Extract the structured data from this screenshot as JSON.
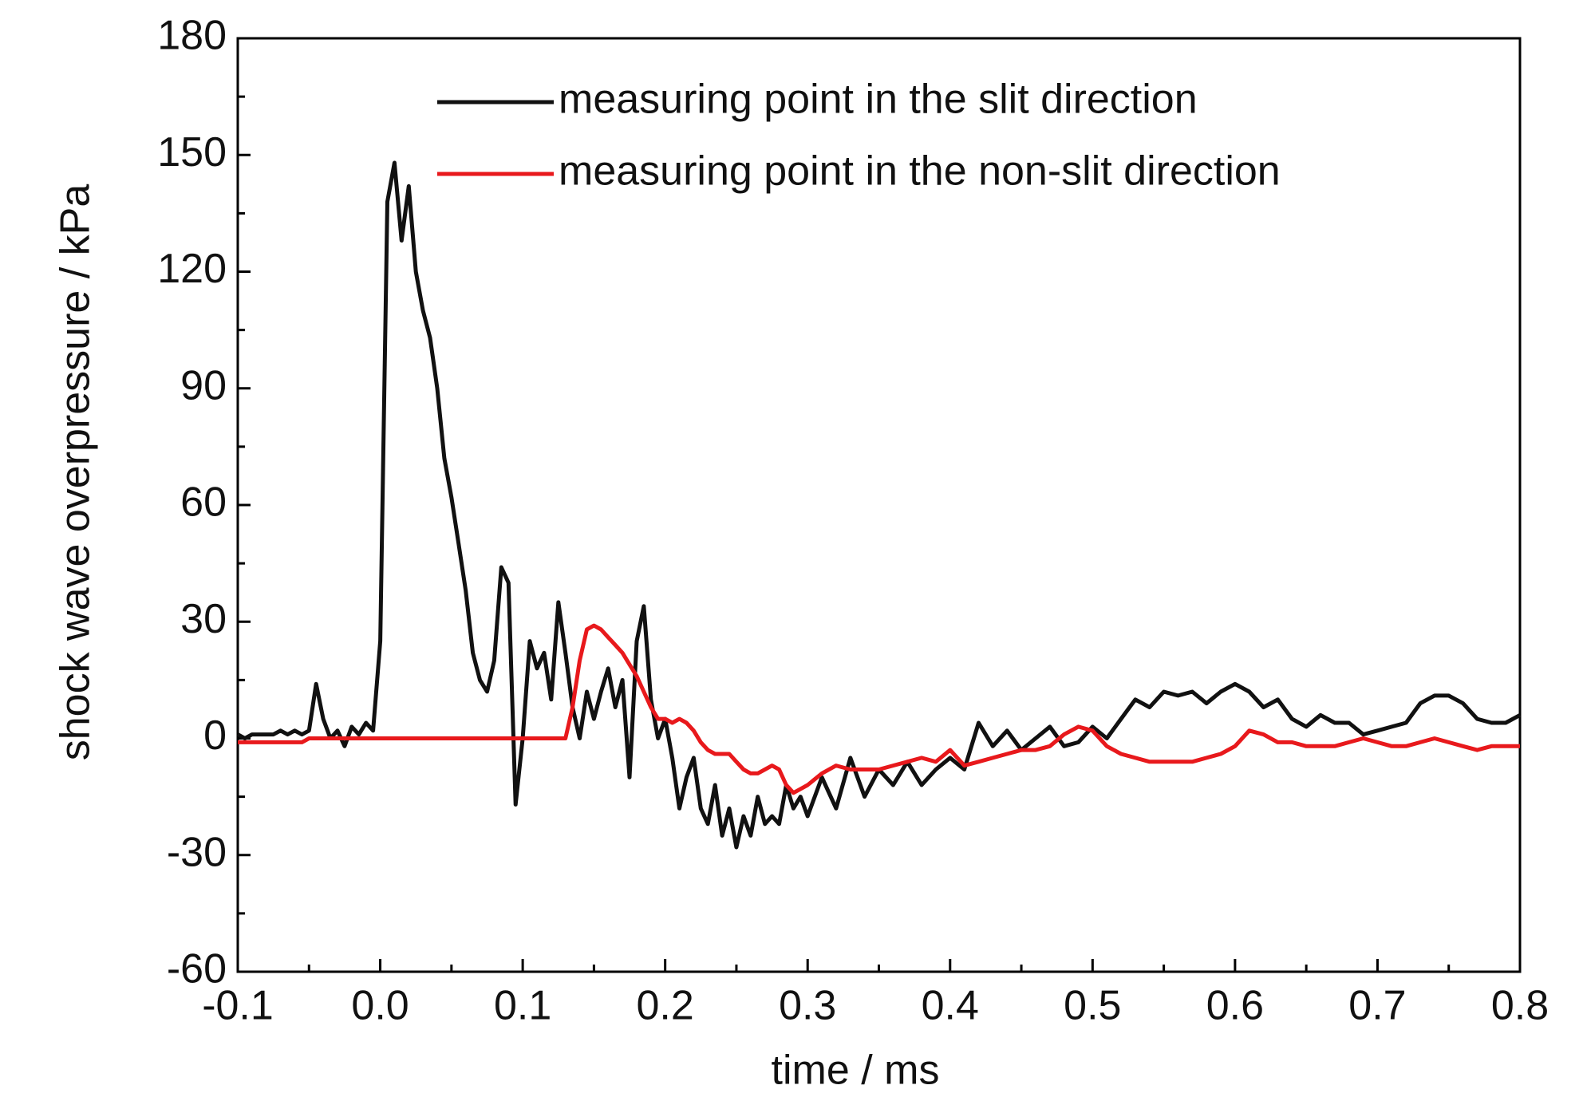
{
  "chart_data": {
    "type": "line",
    "x_label": "time / ms",
    "y_label": "shock wave overpressure / kPa",
    "xlim": [
      -0.1,
      0.8
    ],
    "ylim": [
      -60,
      180
    ],
    "xticks": [
      -0.1,
      {
        "value": 0,
        "label": "0.0"
      },
      0.1,
      0.2,
      0.3,
      0.4,
      0.5,
      0.6,
      0.7,
      0.8
    ],
    "yticks": [
      -60,
      -30,
      0,
      30,
      60,
      90,
      120,
      150,
      180
    ],
    "legend": "top",
    "x": [
      -0.1,
      -0.095,
      -0.09,
      -0.085,
      -0.08,
      -0.075,
      -0.07,
      -0.065,
      -0.06,
      -0.055,
      -0.05,
      -0.045,
      -0.04,
      -0.035,
      -0.03,
      -0.025,
      -0.02,
      -0.015,
      -0.01,
      -0.005,
      0,
      0.005,
      0.01,
      0.015,
      0.02,
      0.025,
      0.03,
      0.035,
      0.04,
      0.045,
      0.05,
      0.055,
      0.06,
      0.065,
      0.07,
      0.075,
      0.08,
      0.085,
      0.09,
      0.095,
      0.1,
      0.105,
      0.11,
      0.115,
      0.12,
      0.125,
      0.13,
      0.135,
      0.14,
      0.145,
      0.15,
      0.155,
      0.16,
      0.165,
      0.17,
      0.175,
      0.18,
      0.185,
      0.19,
      0.195,
      0.2,
      0.205,
      0.21,
      0.215,
      0.22,
      0.225,
      0.23,
      0.235,
      0.24,
      0.245,
      0.25,
      0.255,
      0.26,
      0.265,
      0.27,
      0.275,
      0.28,
      0.285,
      0.29,
      0.295,
      0.3,
      0.31,
      0.32,
      0.33,
      0.34,
      0.35,
      0.36,
      0.37,
      0.38,
      0.39,
      0.4,
      0.41,
      0.42,
      0.43,
      0.44,
      0.45,
      0.46,
      0.47,
      0.48,
      0.49,
      0.5,
      0.51,
      0.52,
      0.53,
      0.54,
      0.55,
      0.56,
      0.57,
      0.58,
      0.59,
      0.6,
      0.61,
      0.62,
      0.63,
      0.64,
      0.65,
      0.66,
      0.67,
      0.68,
      0.69,
      0.7,
      0.71,
      0.72,
      0.73,
      0.74,
      0.75,
      0.76,
      0.77,
      0.78,
      0.79,
      0.8
    ],
    "series": [
      {
        "name": "measuring point in the slit direction",
        "color": "#111111",
        "values": [
          1,
          0,
          1,
          1,
          1,
          1,
          2,
          1,
          2,
          1,
          2,
          14,
          5,
          0,
          2,
          -2,
          3,
          1,
          4,
          2,
          25,
          138,
          148,
          128,
          142,
          120,
          110,
          103,
          90,
          72,
          62,
          50,
          38,
          22,
          15,
          12,
          20,
          44,
          40,
          -17,
          0,
          25,
          18,
          22,
          10,
          35,
          22,
          8,
          0,
          12,
          5,
          12,
          18,
          8,
          15,
          -10,
          25,
          34,
          10,
          0,
          5,
          -5,
          -18,
          -10,
          -5,
          -18,
          -22,
          -12,
          -25,
          -18,
          -28,
          -20,
          -25,
          -15,
          -22,
          -20,
          -22,
          -12,
          -18,
          -15,
          -20,
          -10,
          -18,
          -5,
          -15,
          -8,
          -12,
          -6,
          -12,
          -8,
          -5,
          -8,
          4,
          -2,
          2,
          -3,
          0,
          3,
          -2,
          -1,
          3,
          0,
          5,
          10,
          8,
          12,
          11,
          12,
          9,
          12,
          14,
          12,
          8,
          10,
          5,
          3,
          6,
          4,
          4,
          1,
          2,
          3,
          4,
          9,
          11,
          11,
          9,
          5,
          4,
          4,
          6
        ]
      },
      {
        "name": "measuring point in the non-slit direction",
        "color": "#e8191c",
        "values": [
          -1,
          -1,
          -1,
          -1,
          -1,
          -1,
          -1,
          -1,
          -1,
          -1,
          0,
          0,
          0,
          0,
          0,
          0,
          0,
          0,
          0,
          0,
          0,
          0,
          0,
          0,
          0,
          0,
          0,
          0,
          0,
          0,
          0,
          0,
          0,
          0,
          0,
          0,
          0,
          0,
          0,
          0,
          0,
          0,
          0,
          0,
          0,
          0,
          0,
          8,
          20,
          28,
          29,
          28,
          26,
          24,
          22,
          19,
          16,
          12,
          8,
          5,
          5,
          4,
          5,
          4,
          2,
          -1,
          -3,
          -4,
          -4,
          -4,
          -6,
          -8,
          -9,
          -9,
          -8,
          -7,
          -8,
          -12,
          -14,
          -13,
          -12,
          -9,
          -7,
          -8,
          -8,
          -8,
          -7,
          -6,
          -5,
          -6,
          -3,
          -7,
          -6,
          -5,
          -4,
          -3,
          -3,
          -2,
          1,
          3,
          2,
          -2,
          -4,
          -5,
          -6,
          -6,
          -6,
          -6,
          -5,
          -4,
          -2,
          2,
          1,
          -1,
          -1,
          -2,
          -2,
          -2,
          -1,
          0,
          -1,
          -2,
          -2,
          -1,
          0,
          -1,
          -2,
          -3,
          -2,
          -2,
          -2
        ]
      }
    ]
  }
}
